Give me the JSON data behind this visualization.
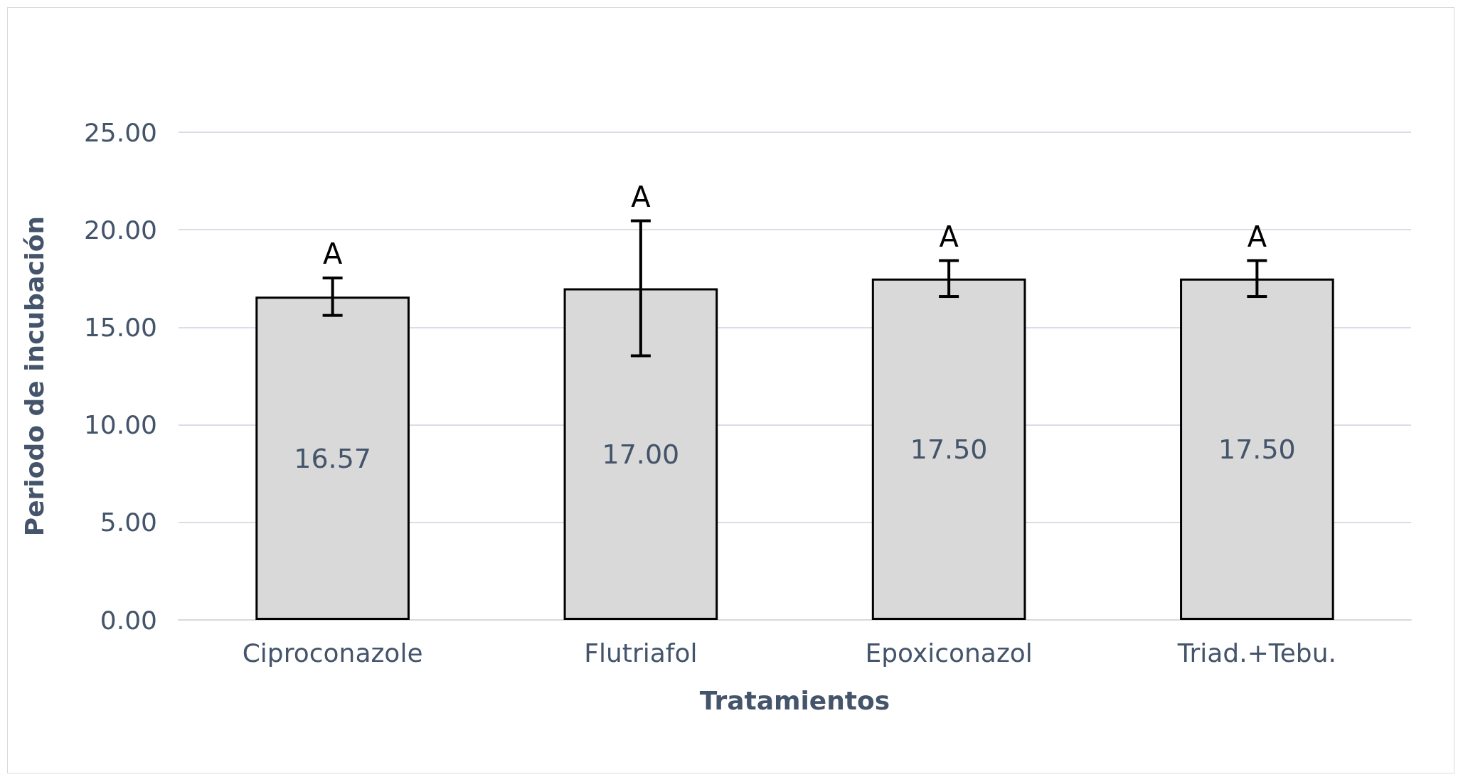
{
  "chart_data": {
    "type": "bar",
    "xlabel": "Tratamientos",
    "ylabel": "Periodo de incubación",
    "categories": [
      "Ciproconazole",
      "Flutriafol",
      "Epoxiconazol",
      "Triad.+Tebu."
    ],
    "values": [
      16.57,
      17.0,
      17.5,
      17.5
    ],
    "value_labels": [
      "16.57",
      "17.00",
      "17.50",
      "17.50"
    ],
    "errors": [
      0.96,
      3.46,
      0.92,
      0.92
    ],
    "color": "#d9d9d9",
    "ylim": [
      0,
      25
    ],
    "yticks": [
      {
        "value": 0,
        "label": "0.00"
      },
      {
        "value": 5,
        "label": "5.00"
      },
      {
        "value": 10,
        "label": "10.00"
      },
      {
        "value": 15,
        "label": "15.00"
      },
      {
        "value": 20,
        "label": "20.00"
      },
      {
        "value": 25,
        "label": "25.00"
      }
    ],
    "grid": "y",
    "annotations": [
      "A",
      "A",
      "A",
      "A"
    ]
  }
}
